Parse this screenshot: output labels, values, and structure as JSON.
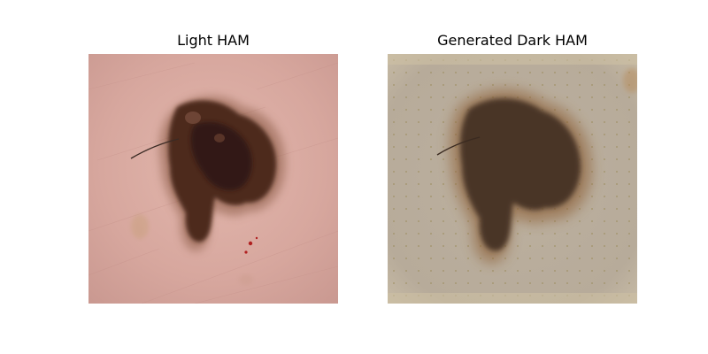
{
  "figure": {
    "panels": [
      {
        "title": "Light HAM"
      },
      {
        "title": "Generated Dark HAM"
      }
    ]
  },
  "colors": {
    "light_skin": "#d9aaa2",
    "light_lesion": "#4a2a1d",
    "dark_background": "#b8ac9c",
    "dark_lesion": "#4a3628"
  }
}
